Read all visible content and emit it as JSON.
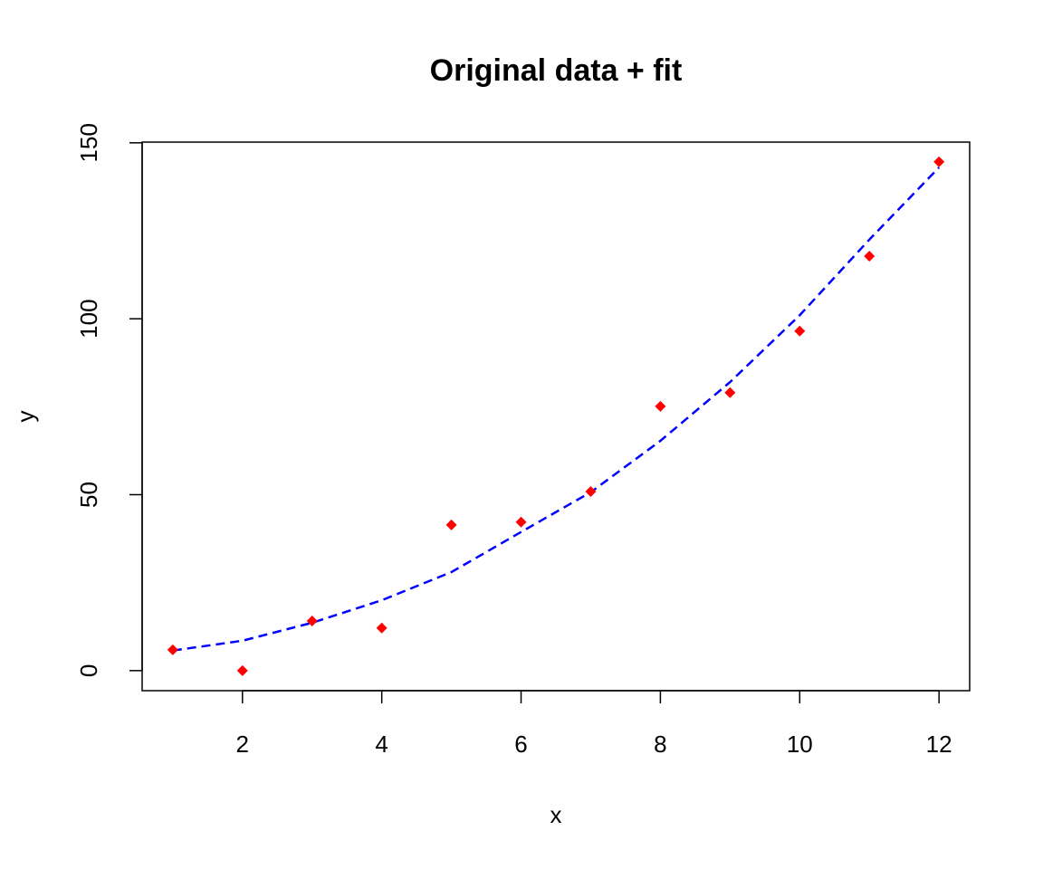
{
  "chart_data": {
    "type": "scatter",
    "title": "Original data + fit",
    "x_label": "x",
    "y_label": "y",
    "points": {
      "x": [
        1,
        2,
        3,
        4,
        5,
        6,
        7,
        8,
        9,
        10,
        11,
        12
      ],
      "values": [
        5.9,
        0,
        14.1,
        12.1,
        41.4,
        42.2,
        50.9,
        75.1,
        79.0,
        96.5,
        117.8,
        144.6
      ],
      "color": "#ff0000"
    },
    "fit": {
      "x": [
        1,
        2,
        3,
        4,
        5,
        6,
        7,
        8,
        9,
        10,
        11,
        12
      ],
      "values": [
        5.7,
        8.5,
        13.6,
        20,
        28,
        39.4,
        50.7,
        65.3,
        82,
        101,
        122.5,
        143
      ],
      "color": "#0000ff",
      "dashed": true
    },
    "xlim": [
      0.56,
      12.44
    ],
    "ylim": [
      -5.7,
      150.2
    ],
    "xticks": [
      2,
      4,
      6,
      8,
      10,
      12
    ],
    "yticks": [
      0,
      50,
      100,
      150
    ]
  }
}
